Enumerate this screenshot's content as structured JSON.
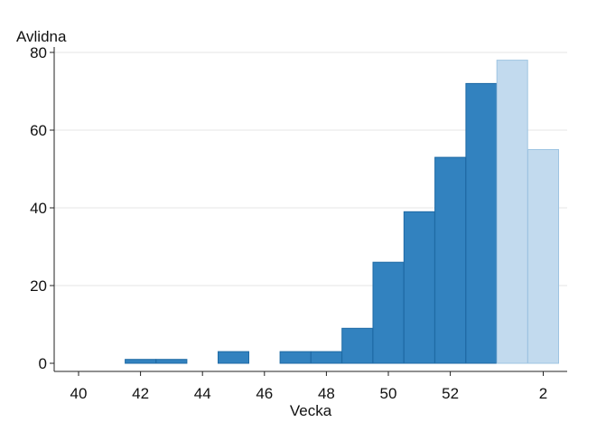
{
  "chart_data": {
    "type": "bar",
    "ylabel": "Avlidna",
    "xlabel": "Vecka",
    "ylim": [
      0,
      80
    ],
    "yticks": [
      0,
      20,
      40,
      60,
      80
    ],
    "xticks": [
      "40",
      "42",
      "44",
      "46",
      "48",
      "50",
      "52",
      "2"
    ],
    "grid": "horizontal",
    "categories": [
      "40",
      "41",
      "42",
      "43",
      "44",
      "45",
      "46",
      "47",
      "48",
      "49",
      "50",
      "51",
      "52",
      "53",
      "1",
      "2",
      "3"
    ],
    "values": [
      0,
      0,
      1,
      1,
      0,
      3,
      0,
      3,
      3,
      9,
      26,
      39,
      53,
      72,
      78,
      55,
      0
    ],
    "provisional": [
      false,
      false,
      false,
      false,
      false,
      false,
      false,
      false,
      false,
      false,
      false,
      false,
      false,
      false,
      true,
      true,
      false
    ],
    "colors": {
      "bar": "#3282bf",
      "bar_stroke": "#1f6aa5",
      "bar_provisional": "#c2daee",
      "bar_provisional_stroke": "#9ec4e2",
      "grid": "#e6e6e6",
      "axis": "#222222"
    }
  }
}
